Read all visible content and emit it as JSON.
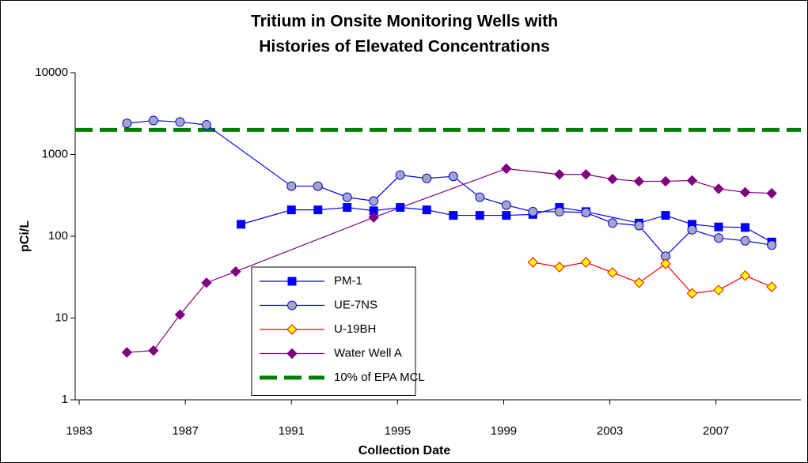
{
  "chart_data": {
    "type": "line",
    "title": [
      "Tritium in Onsite Monitoring Wells with",
      "Histories of Elevated Concentrations"
    ],
    "xlabel": "Collection Date",
    "ylabel": "pCi/L",
    "ylog": true,
    "ylim": [
      1,
      10000
    ],
    "yticks": [
      1,
      10,
      100,
      1000,
      10000
    ],
    "xlim": [
      1982.85,
      2010.2
    ],
    "xticks": [
      1983,
      1987,
      1991,
      1995,
      1999,
      2003,
      2007
    ],
    "legend": "lower center",
    "series": [
      {
        "name": "PM-1",
        "color": "#0000ff",
        "marker": "square",
        "marker_fill": "#0000ff",
        "x": [
          1989.1,
          1991.0,
          1992.0,
          1993.1,
          1994.1,
          1995.1,
          1996.1,
          1997.1,
          1998.1,
          1999.1,
          2000.1,
          2001.1,
          2002.1,
          2004.1,
          2005.1,
          2006.1,
          2007.1,
          2008.1,
          2009.1
        ],
        "values": [
          140,
          210,
          210,
          225,
          205,
          225,
          210,
          180,
          180,
          180,
          185,
          225,
          200,
          145,
          180,
          140,
          130,
          128,
          85
        ]
      },
      {
        "name": "UE-7NS",
        "color": "#0000ff",
        "marker": "circle",
        "marker_fill": "#a6a6c0",
        "x": [
          1984.8,
          1985.8,
          1986.8,
          1987.8,
          1991.0,
          1992.0,
          1993.1,
          1994.1,
          1995.1,
          1996.1,
          1997.1,
          1998.1,
          1999.1,
          2000.1,
          2001.1,
          2002.1,
          2003.1,
          2004.1,
          2005.1,
          2006.1,
          2007.1,
          2008.1,
          2009.1
        ],
        "values": [
          2400,
          2600,
          2500,
          2300,
          410,
          410,
          300,
          270,
          560,
          510,
          540,
          300,
          240,
          200,
          200,
          195,
          145,
          135,
          57,
          120,
          95,
          88,
          78
        ]
      },
      {
        "name": "U-19BH",
        "color": "#ff0000",
        "marker": "diamond",
        "marker_fill": "#ffff00",
        "x": [
          2000.1,
          2001.1,
          2002.1,
          2003.1,
          2004.1,
          2005.1,
          2006.1,
          2007.1,
          2008.1,
          2009.1
        ],
        "values": [
          48,
          42,
          48,
          36,
          27,
          46,
          20,
          22,
          33,
          24
        ]
      },
      {
        "name": "Water Well A",
        "color": "#800080",
        "marker": "diamond",
        "marker_fill": "#800080",
        "x": [
          1984.8,
          1985.8,
          1986.8,
          1987.8,
          1988.9,
          1994.1,
          1999.1,
          2001.1,
          2002.1,
          2003.1,
          2004.1,
          2005.1,
          2006.1,
          2007.1,
          2008.1,
          2009.1
        ],
        "values": [
          3.8,
          4,
          11,
          27,
          37,
          170,
          670,
          570,
          570,
          500,
          470,
          470,
          480,
          380,
          345,
          335
        ]
      }
    ],
    "reference_lines": [
      {
        "name": "10% of EPA MCL",
        "value": 2000,
        "color": "#008000",
        "dashed": true
      }
    ]
  }
}
